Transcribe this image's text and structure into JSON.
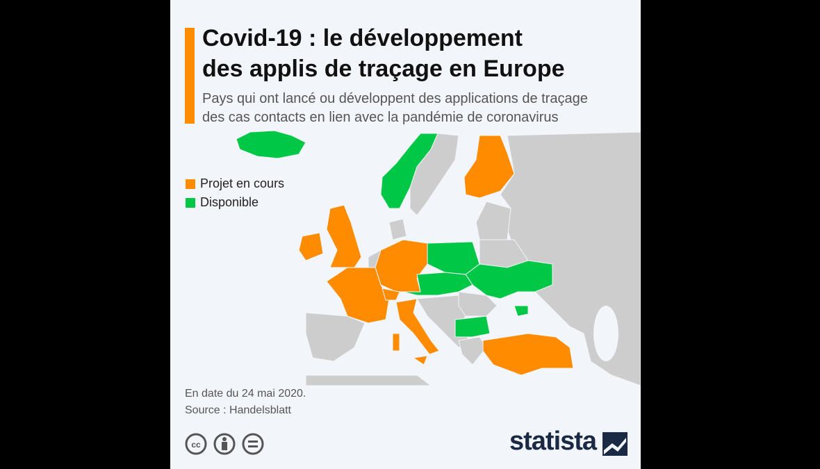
{
  "header": {
    "title_lines": [
      "Covid-19 : le développement",
      "des applis de traçage en Europe"
    ],
    "subtitle_lines": [
      "Pays qui ont lancé ou développent des applications de traçage",
      "des cas contacts en lien avec la pandémie de coronavirus"
    ]
  },
  "legend": [
    {
      "label": "Projet en cours",
      "color": "#ff8b00"
    },
    {
      "label": "Disponible",
      "color": "#00c846"
    }
  ],
  "footer": {
    "note": "En date du 24 mai 2020.",
    "source": "Source : Handelsblatt",
    "brand": "statista"
  }
}
